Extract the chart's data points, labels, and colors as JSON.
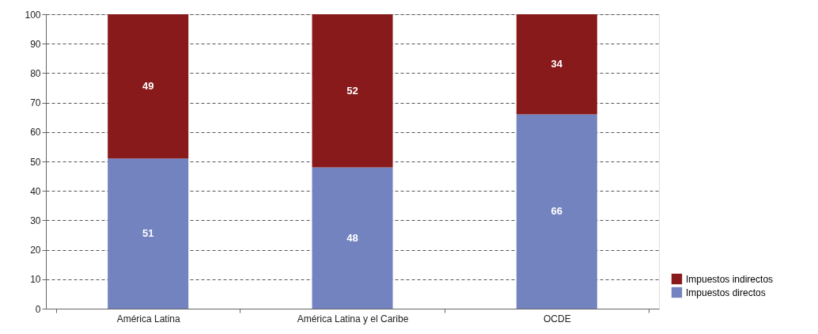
{
  "chart_data": {
    "type": "bar",
    "stacked": true,
    "categories": [
      "América Latina",
      "América Latina y el Caribe",
      "OCDE"
    ],
    "series": [
      {
        "name": "Impuestos directos",
        "color": "#7383c0",
        "values": [
          51,
          48,
          66
        ]
      },
      {
        "name": "Impuestos indirectos",
        "color": "#881a1b",
        "values": [
          49,
          52,
          34
        ]
      }
    ],
    "ylim": [
      0,
      100
    ],
    "yticks": [
      0,
      10,
      20,
      30,
      40,
      50,
      60,
      70,
      80,
      90,
      100
    ],
    "grid": "y",
    "line_style": "dashed",
    "data_labels": true,
    "legend": "bottom right"
  }
}
